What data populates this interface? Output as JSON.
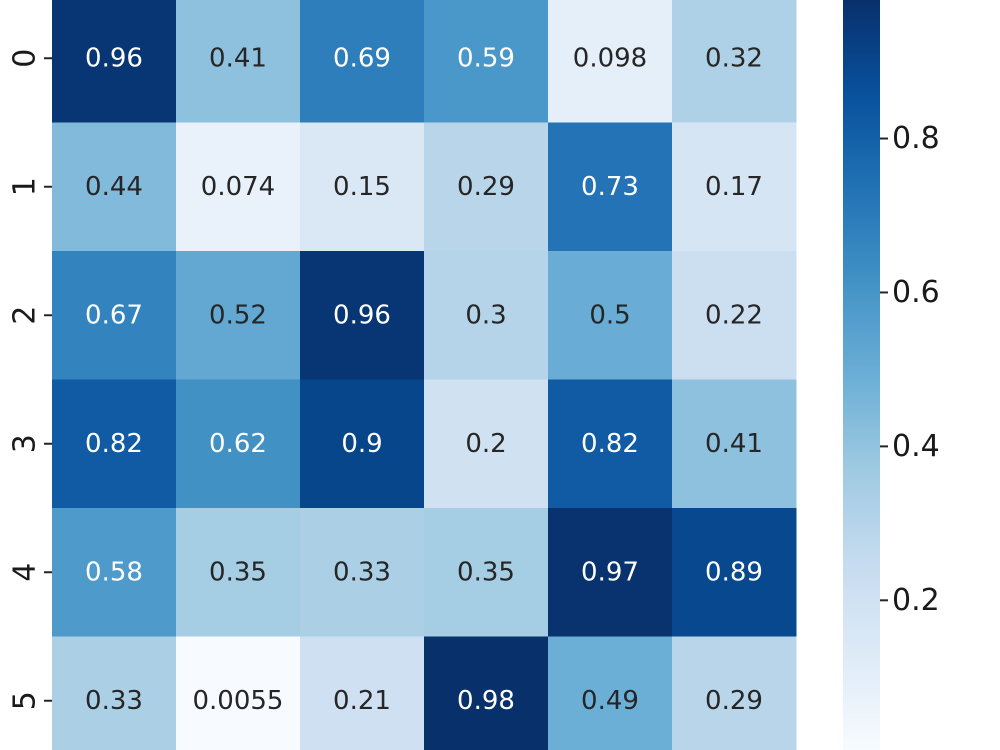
{
  "chart_data": {
    "type": "heatmap",
    "row_labels": [
      "0",
      "1",
      "2",
      "3",
      "4",
      "5"
    ],
    "col_labels": [
      "",
      "",
      "",
      "",
      "",
      ""
    ],
    "values": [
      [
        0.96,
        0.41,
        0.69,
        0.59,
        0.098,
        0.32
      ],
      [
        0.44,
        0.074,
        0.15,
        0.29,
        0.73,
        0.17
      ],
      [
        0.67,
        0.52,
        0.96,
        0.3,
        0.5,
        0.22
      ],
      [
        0.82,
        0.62,
        0.9,
        0.2,
        0.82,
        0.41
      ],
      [
        0.58,
        0.35,
        0.33,
        0.35,
        0.97,
        0.89
      ],
      [
        0.33,
        0.0055,
        0.21,
        0.98,
        0.49,
        0.29
      ]
    ],
    "cell_labels": [
      [
        "0.96",
        "0.41",
        "0.69",
        "0.59",
        "0.098",
        "0.32"
      ],
      [
        "0.44",
        "0.074",
        "0.15",
        "0.29",
        "0.73",
        "0.17"
      ],
      [
        "0.67",
        "0.52",
        "0.96",
        "0.3",
        "0.5",
        "0.22"
      ],
      [
        "0.82",
        "0.62",
        "0.9",
        "0.2",
        "0.82",
        "0.41"
      ],
      [
        "0.58",
        "0.35",
        "0.33",
        "0.35",
        "0.97",
        "0.89"
      ],
      [
        "0.33",
        "0.0055",
        "0.21",
        "0.98",
        "0.49",
        "0.29"
      ]
    ],
    "colormap": "Blues",
    "colorbar": {
      "range": [
        0.0055,
        0.98
      ],
      "ticks": [
        0.2,
        0.4,
        0.6,
        0.8
      ],
      "tick_labels": [
        "0.2",
        "0.4",
        "0.6",
        "0.8"
      ]
    },
    "colors": {
      "dark_text": "#262626",
      "light_text": "#ffffff"
    }
  }
}
